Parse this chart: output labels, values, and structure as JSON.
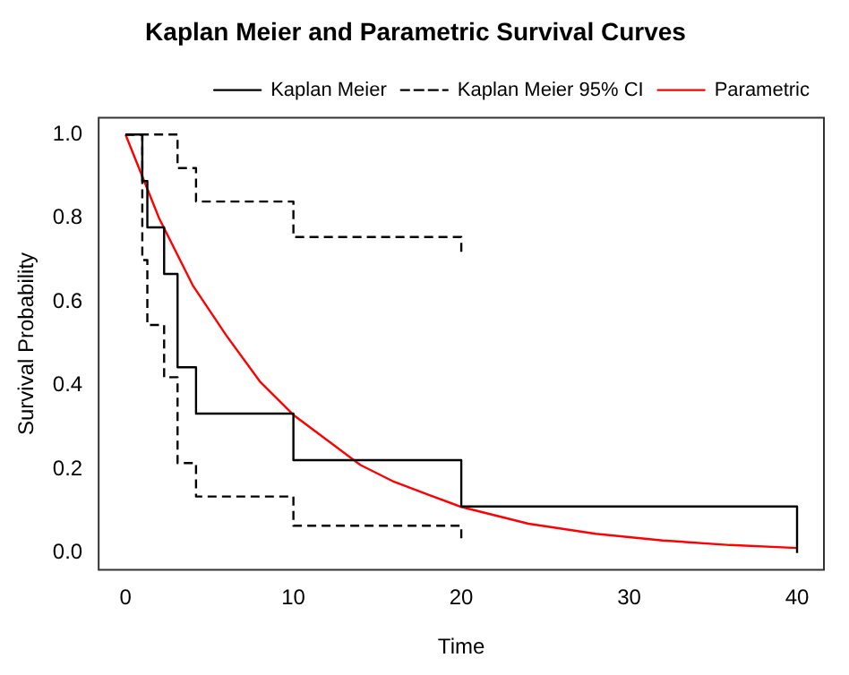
{
  "chart_data": {
    "type": "step",
    "title": "Kaplan Meier and Parametric Survival Curves",
    "xlabel": "Time",
    "ylabel": "Survival Probability",
    "xlim": [
      -1.6,
      41.6
    ],
    "ylim": [
      -0.04,
      1.04
    ],
    "xticks": [
      0,
      10,
      20,
      30,
      40
    ],
    "yticks": [
      {
        "value": 0,
        "label": "0.0"
      },
      {
        "value": 0.2,
        "label": "0.2"
      },
      {
        "value": 0.4,
        "label": "0.4"
      },
      {
        "value": 0.6,
        "label": "0.6"
      },
      {
        "value": 0.8,
        "label": "0.8"
      },
      {
        "value": 1,
        "label": "1.0"
      }
    ],
    "grid": false,
    "legend": "top right",
    "marker": "none",
    "series": [
      {
        "name": "Kaplan Meier",
        "color": "#000000",
        "line_style": "solid",
        "x": [
          0,
          1,
          1.3,
          2.3,
          3.1,
          4.2,
          10,
          20,
          40
        ],
        "values": [
          1,
          0.889,
          0.778,
          0.667,
          0.444,
          0.333,
          0.222,
          0.111,
          0
        ]
      },
      {
        "name": "Kaplan Meier 95% CI",
        "color": "#000000",
        "line_style": "dashed",
        "x": [
          0,
          3.1,
          4.2,
          10,
          20
        ],
        "values": [
          1,
          0.92,
          0.84,
          0.755,
          0.71
        ]
      },
      {
        "color": "#000000",
        "line_style": "dashed",
        "x": [
          0,
          1,
          1.3,
          2.3,
          3.1,
          4.2,
          10,
          20
        ],
        "values": [
          1,
          0.7,
          0.545,
          0.42,
          0.215,
          0.135,
          0.065,
          0.025
        ]
      },
      {
        "name": "Parametric",
        "type": "line",
        "color": "#ff0000",
        "line_style": "solid",
        "x": [
          0,
          2,
          4,
          6,
          8,
          10,
          12,
          14,
          16,
          18,
          20,
          24,
          28,
          32,
          36,
          40
        ],
        "values": [
          1,
          0.8,
          0.64,
          0.52,
          0.41,
          0.33,
          0.27,
          0.21,
          0.17,
          0.14,
          0.11,
          0.07,
          0.046,
          0.03,
          0.019,
          0.012
        ]
      }
    ]
  }
}
